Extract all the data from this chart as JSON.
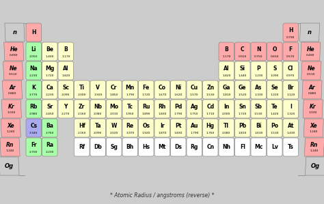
{
  "title_text": "* Atomic Radius / angstroms (reverse) *",
  "bg_color": "#cccccc",
  "elements": [
    {
      "symbol": "H",
      "value": "",
      "col": 1,
      "row": 1,
      "color": "#ffaaaa"
    },
    {
      "symbol": "Li",
      "value": "2.050",
      "col": 1,
      "row": 2,
      "color": "#aaffaa"
    },
    {
      "symbol": "Be",
      "value": "1.400",
      "col": 2,
      "row": 2,
      "color": "#ffffcc"
    },
    {
      "symbol": "B",
      "value": "1.170",
      "col": 3,
      "row": 2,
      "color": "#ffffcc"
    },
    {
      "symbol": "Na",
      "value": "2.230",
      "col": 1,
      "row": 3,
      "color": "#aaffaa"
    },
    {
      "symbol": "Mg",
      "value": "1.720",
      "col": 2,
      "row": 3,
      "color": "#ffffcc"
    },
    {
      "symbol": "Al",
      "value": "1.820",
      "col": 3,
      "row": 3,
      "color": "#ffffcc"
    },
    {
      "symbol": "K",
      "value": "2.770",
      "col": 1,
      "row": 4,
      "color": "#aaffaa"
    },
    {
      "symbol": "Ca",
      "value": "2.230",
      "col": 2,
      "row": 4,
      "color": "#ffffcc"
    },
    {
      "symbol": "Sc",
      "value": "2.090",
      "col": 3,
      "row": 4,
      "color": "#ffffcc"
    },
    {
      "symbol": "Ti",
      "value": "2.000",
      "col": 4,
      "row": 4,
      "color": "#ffffcc"
    },
    {
      "symbol": "V",
      "value": "1.920",
      "col": 5,
      "row": 4,
      "color": "#ffffcc"
    },
    {
      "symbol": "Cr",
      "value": "1.850",
      "col": 6,
      "row": 4,
      "color": "#ffffcc"
    },
    {
      "symbol": "Mn",
      "value": "1.790",
      "col": 7,
      "row": 4,
      "color": "#ffffcc"
    },
    {
      "symbol": "Fe",
      "value": "1.720",
      "col": 8,
      "row": 4,
      "color": "#ffffcc"
    },
    {
      "symbol": "Co",
      "value": "1.670",
      "col": 9,
      "row": 4,
      "color": "#ffffcc"
    },
    {
      "symbol": "Ni",
      "value": "1.620",
      "col": 10,
      "row": 4,
      "color": "#ffffcc"
    },
    {
      "symbol": "Cu",
      "value": "1.570",
      "col": 11,
      "row": 4,
      "color": "#ffffcc"
    },
    {
      "symbol": "Zn",
      "value": "1.530",
      "col": 12,
      "row": 4,
      "color": "#ffffcc"
    },
    {
      "symbol": "Ga",
      "value": "1.810",
      "col": 13,
      "row": 4,
      "color": "#ffffcc"
    },
    {
      "symbol": "Ge",
      "value": "1.520",
      "col": 14,
      "row": 4,
      "color": "#ffffcc"
    },
    {
      "symbol": "As",
      "value": "1.330",
      "col": 15,
      "row": 4,
      "color": "#ffffcc"
    },
    {
      "symbol": "Se",
      "value": "1.220",
      "col": 16,
      "row": 4,
      "color": "#ffffcc"
    },
    {
      "symbol": "Br",
      "value": "1.120",
      "col": 17,
      "row": 4,
      "color": "#ffffcc"
    },
    {
      "symbol": "Rb",
      "value": "2.980",
      "col": 1,
      "row": 5,
      "color": "#aaffaa"
    },
    {
      "symbol": "Sr",
      "value": "2.450",
      "col": 2,
      "row": 5,
      "color": "#ffffcc"
    },
    {
      "symbol": "Y",
      "value": "2.270",
      "col": 3,
      "row": 5,
      "color": "#ffffcc"
    },
    {
      "symbol": "Zr",
      "value": "2.160",
      "col": 4,
      "row": 5,
      "color": "#ffffcc"
    },
    {
      "symbol": "Nb",
      "value": "2.080",
      "col": 5,
      "row": 5,
      "color": "#ffffcc"
    },
    {
      "symbol": "Mo",
      "value": "2.010",
      "col": 6,
      "row": 5,
      "color": "#ffffcc"
    },
    {
      "symbol": "Tc",
      "value": "1.950",
      "col": 7,
      "row": 5,
      "color": "#ffffcc"
    },
    {
      "symbol": "Ru",
      "value": "1.890",
      "col": 8,
      "row": 5,
      "color": "#ffffcc"
    },
    {
      "symbol": "Rh",
      "value": "1.830",
      "col": 9,
      "row": 5,
      "color": "#ffffcc"
    },
    {
      "symbol": "Pd",
      "value": "1.790",
      "col": 10,
      "row": 5,
      "color": "#ffffcc"
    },
    {
      "symbol": "Ag",
      "value": "1.750",
      "col": 11,
      "row": 5,
      "color": "#ffffcc"
    },
    {
      "symbol": "Cd",
      "value": "1.710",
      "col": 12,
      "row": 5,
      "color": "#ffffcc"
    },
    {
      "symbol": "In",
      "value": "2.000",
      "col": 13,
      "row": 5,
      "color": "#ffffcc"
    },
    {
      "symbol": "Sn",
      "value": "1.720",
      "col": 14,
      "row": 5,
      "color": "#ffffcc"
    },
    {
      "symbol": "Sb",
      "value": "1.530",
      "col": 15,
      "row": 5,
      "color": "#ffffcc"
    },
    {
      "symbol": "Te",
      "value": "1.420",
      "col": 16,
      "row": 5,
      "color": "#ffffcc"
    },
    {
      "symbol": "I",
      "value": "1.320",
      "col": 17,
      "row": 5,
      "color": "#ffffcc"
    },
    {
      "symbol": "Cs",
      "value": "3.340",
      "col": 1,
      "row": 6,
      "color": "#aaaaee"
    },
    {
      "symbol": "Ba",
      "value": "2.760",
      "col": 2,
      "row": 6,
      "color": "#aaffaa"
    },
    {
      "symbol": "Hf",
      "value": "2.160",
      "col": 4,
      "row": 6,
      "color": "#ffffcc"
    },
    {
      "symbol": "Ta",
      "value": "2.090",
      "col": 5,
      "row": 6,
      "color": "#ffffcc"
    },
    {
      "symbol": "W",
      "value": "2.020",
      "col": 6,
      "row": 6,
      "color": "#ffffcc"
    },
    {
      "symbol": "Re",
      "value": "1.970",
      "col": 7,
      "row": 6,
      "color": "#ffffcc"
    },
    {
      "symbol": "Os",
      "value": "1.920",
      "col": 8,
      "row": 6,
      "color": "#ffffcc"
    },
    {
      "symbol": "Ir",
      "value": "1.870",
      "col": 9,
      "row": 6,
      "color": "#ffffcc"
    },
    {
      "symbol": "Pt",
      "value": "1.830",
      "col": 10,
      "row": 6,
      "color": "#ffffcc"
    },
    {
      "symbol": "Au",
      "value": "1.790",
      "col": 11,
      "row": 6,
      "color": "#ffffcc"
    },
    {
      "symbol": "Hg",
      "value": "1.760",
      "col": 12,
      "row": 6,
      "color": "#ffffcc"
    },
    {
      "symbol": "Tl",
      "value": "2.080",
      "col": 13,
      "row": 6,
      "color": "#ffffcc"
    },
    {
      "symbol": "Pb",
      "value": "1.810",
      "col": 14,
      "row": 6,
      "color": "#ffffcc"
    },
    {
      "symbol": "Bi",
      "value": "1.630",
      "col": 15,
      "row": 6,
      "color": "#ffffcc"
    },
    {
      "symbol": "Po",
      "value": "1.530",
      "col": 16,
      "row": 6,
      "color": "#ffffcc"
    },
    {
      "symbol": "At",
      "value": "1.430",
      "col": 17,
      "row": 6,
      "color": "#ffffcc"
    },
    {
      "symbol": "Fr",
      "value": "2.700",
      "col": 1,
      "row": 7,
      "color": "#aaffaa"
    },
    {
      "symbol": "Ra",
      "value": "2.230",
      "col": 2,
      "row": 7,
      "color": "#aaffaa"
    },
    {
      "symbol": "Rf",
      "value": "",
      "col": 4,
      "row": 7,
      "color": "#ffffff"
    },
    {
      "symbol": "Db",
      "value": "",
      "col": 5,
      "row": 7,
      "color": "#ffffff"
    },
    {
      "symbol": "Sg",
      "value": "",
      "col": 6,
      "row": 7,
      "color": "#ffffff"
    },
    {
      "symbol": "Bh",
      "value": "",
      "col": 7,
      "row": 7,
      "color": "#ffffff"
    },
    {
      "symbol": "Hs",
      "value": "",
      "col": 8,
      "row": 7,
      "color": "#ffffff"
    },
    {
      "symbol": "Mt",
      "value": "",
      "col": 9,
      "row": 7,
      "color": "#ffffff"
    },
    {
      "symbol": "Ds",
      "value": "",
      "col": 10,
      "row": 7,
      "color": "#ffffff"
    },
    {
      "symbol": "Rg",
      "value": "",
      "col": 11,
      "row": 7,
      "color": "#ffffff"
    },
    {
      "symbol": "Cn",
      "value": "",
      "col": 12,
      "row": 7,
      "color": "#ffffff"
    },
    {
      "symbol": "Nh",
      "value": "",
      "col": 13,
      "row": 7,
      "color": "#ffffff"
    },
    {
      "symbol": "Fl",
      "value": "",
      "col": 14,
      "row": 7,
      "color": "#ffffff"
    },
    {
      "symbol": "Mc",
      "value": "",
      "col": 15,
      "row": 7,
      "color": "#ffffff"
    },
    {
      "symbol": "Lv",
      "value": "",
      "col": 16,
      "row": 7,
      "color": "#ffffff"
    },
    {
      "symbol": "Ts",
      "value": "",
      "col": 17,
      "row": 7,
      "color": "#ffffff"
    },
    {
      "symbol": "B",
      "value": "1.170",
      "col": 13,
      "row": 2,
      "color": "#ffaaaa"
    },
    {
      "symbol": "C",
      "value": "0.910",
      "col": 14,
      "row": 2,
      "color": "#ffaaaa"
    },
    {
      "symbol": "N",
      "value": "0.750",
      "col": 15,
      "row": 2,
      "color": "#ffaaaa"
    },
    {
      "symbol": "O",
      "value": "0.650",
      "col": 16,
      "row": 2,
      "color": "#ffaaaa"
    },
    {
      "symbol": "F",
      "value": "0.570",
      "col": 17,
      "row": 2,
      "color": "#ffaaaa"
    },
    {
      "symbol": "H",
      "value": "0.790",
      "col": 17,
      "row": 1,
      "color": "#ffaaaa"
    },
    {
      "symbol": "Al",
      "value": "1.820",
      "col": 13,
      "row": 3,
      "color": "#ffffcc"
    },
    {
      "symbol": "Si",
      "value": "1.440",
      "col": 14,
      "row": 3,
      "color": "#ffffcc"
    },
    {
      "symbol": "P",
      "value": "1.230",
      "col": 15,
      "row": 3,
      "color": "#ffffcc"
    },
    {
      "symbol": "S",
      "value": "1.090",
      "col": 16,
      "row": 3,
      "color": "#ffffcc"
    },
    {
      "symbol": "Cl",
      "value": "0.970",
      "col": 17,
      "row": 3,
      "color": "#ffffcc"
    }
  ],
  "side_left": [
    {
      "label": "n",
      "row": 1,
      "color": "#cccccc",
      "value": ""
    },
    {
      "label": "He",
      "row": 2,
      "color": "#ffaaaa",
      "value": "0.490"
    },
    {
      "label": "Ne",
      "row": 3,
      "color": "#ffaaaa",
      "value": "0.510"
    },
    {
      "label": "Ar",
      "row": 4,
      "color": "#ffaaaa",
      "value": "0.880"
    },
    {
      "label": "Kr",
      "row": 5,
      "color": "#ffaaaa",
      "value": "1.030"
    },
    {
      "label": "Xe",
      "row": 6,
      "color": "#ffaaaa",
      "value": "1.240"
    },
    {
      "label": "Rn",
      "row": 7,
      "color": "#ffaaaa",
      "value": "1.240"
    },
    {
      "label": "Og",
      "row": 8,
      "color": "#cccccc",
      "value": ""
    }
  ],
  "side_right": [
    {
      "label": "n",
      "row": 1,
      "color": "#cccccc",
      "value": ""
    },
    {
      "label": "He",
      "row": 2,
      "color": "#ffaaaa",
      "value": "0.490"
    },
    {
      "label": "Ne",
      "row": 3,
      "color": "#ffaaaa",
      "value": "0.510"
    },
    {
      "label": "Ar",
      "row": 4,
      "color": "#ffaaaa",
      "value": "0.880"
    },
    {
      "label": "Kr",
      "row": 5,
      "color": "#ffaaaa",
      "value": "1.030"
    },
    {
      "label": "Xe",
      "row": 6,
      "color": "#ffaaaa",
      "value": "1.240"
    },
    {
      "label": "Rn",
      "row": 7,
      "color": "#ffaaaa",
      "value": "1.240"
    },
    {
      "label": "Og",
      "row": 8,
      "color": "#cccccc",
      "value": ""
    }
  ]
}
